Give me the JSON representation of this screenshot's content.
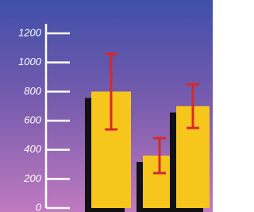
{
  "chart_data": {
    "type": "bar",
    "categories": [
      null,
      null,
      null
    ],
    "values": [
      800,
      360,
      700
    ],
    "errors": [
      260,
      120,
      150
    ],
    "color": "#f7c61c",
    "error_color": "#d52a2a",
    "ylim": [
      0,
      1200
    ],
    "yticks": [
      0,
      200,
      400,
      600,
      800,
      1000,
      1200
    ]
  }
}
